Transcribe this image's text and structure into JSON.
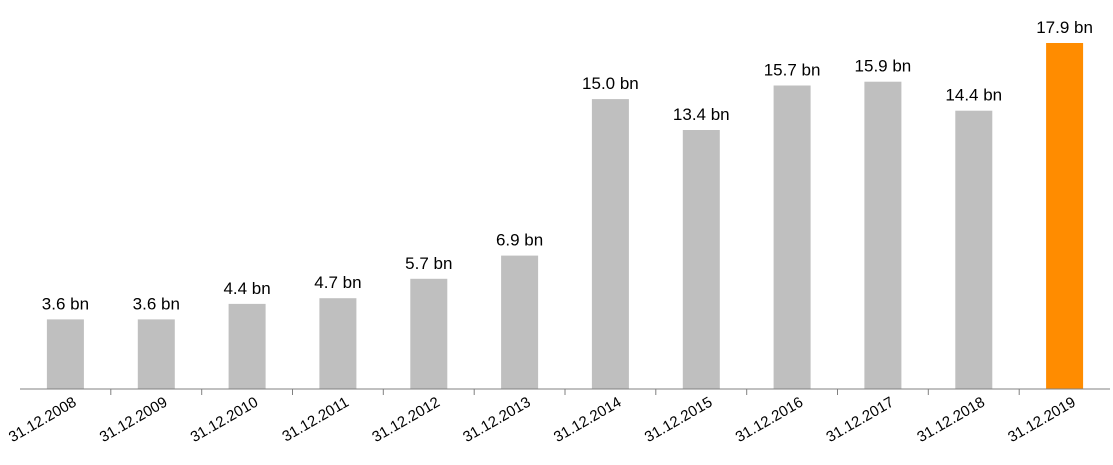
{
  "chart_data": {
    "type": "bar",
    "categories": [
      "31.12.2008",
      "31.12.2009",
      "31.12.2010",
      "31.12.2011",
      "31.12.2012",
      "31.12.2013",
      "31.12.2014",
      "31.12.2015",
      "31.12.2016",
      "31.12.2017",
      "31.12.2018",
      "31.12.2019"
    ],
    "values": [
      3.6,
      3.6,
      4.4,
      4.7,
      5.7,
      6.9,
      15.0,
      13.4,
      15.7,
      15.9,
      14.4,
      17.9
    ],
    "data_labels": [
      "3.6 bn",
      "3.6 bn",
      "4.4 bn",
      "4.7 bn",
      "5.7 bn",
      "6.9 bn",
      "15.0 bn",
      "13.4 bn",
      "15.7 bn",
      "15.9 bn",
      "14.4 bn",
      "17.9 bn"
    ],
    "bar_colors": [
      "#bfbfbf",
      "#bfbfbf",
      "#bfbfbf",
      "#bfbfbf",
      "#bfbfbf",
      "#bfbfbf",
      "#bfbfbf",
      "#bfbfbf",
      "#bfbfbf",
      "#bfbfbf",
      "#bfbfbf",
      "#ff8c00"
    ],
    "title": "",
    "xlabel": "",
    "ylabel": "",
    "ylim": [
      0,
      17.9
    ],
    "grid": false,
    "axis_color": "#808080"
  }
}
